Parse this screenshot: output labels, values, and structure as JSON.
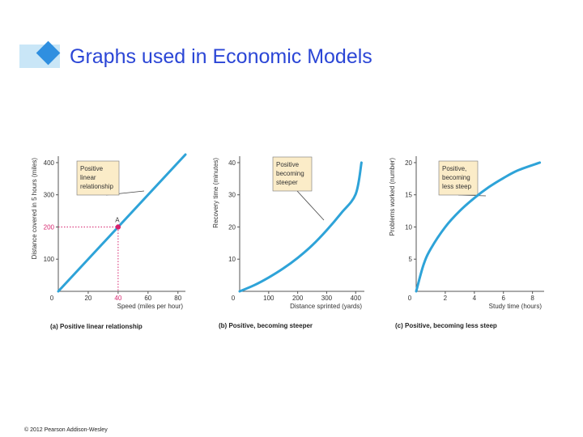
{
  "slide": {
    "title": "Graphs used in Economic Models",
    "copyright": "© 2012 Pearson Addison-Wesley"
  },
  "colors": {
    "curve": "#2ea3d8",
    "callout_bg": "#fbecc8",
    "point": "#d6246e",
    "title": "#2b46d6"
  },
  "chart_data": [
    {
      "type": "line",
      "panel": "a",
      "title": "(a) Positive linear relationship",
      "xlabel": "Speed (miles per hour)",
      "ylabel": "Distance covered in 5 hours (miles)",
      "xlim": [
        0,
        85
      ],
      "ylim": [
        0,
        420
      ],
      "xticks": [
        0,
        20,
        40,
        60,
        80
      ],
      "yticks": [
        100,
        200,
        300,
        400
      ],
      "series": [
        {
          "x": [
            0,
            85
          ],
          "y": [
            0,
            425
          ]
        }
      ],
      "point": {
        "label": "A",
        "x": 40,
        "y": 200
      },
      "highlight_xtick": 40,
      "highlight_ytick": 200,
      "callout": [
        "Positive",
        "linear",
        "relationship"
      ]
    },
    {
      "type": "line",
      "panel": "b",
      "title": "(b) Positive, becoming steeper",
      "xlabel": "Distance sprinted (yards)",
      "ylabel": "Recovery time (minutes)",
      "xlim": [
        0,
        430
      ],
      "ylim": [
        0,
        42
      ],
      "xticks": [
        0,
        100,
        200,
        300,
        400
      ],
      "yticks": [
        10,
        20,
        30,
        40
      ],
      "series": [
        {
          "x": [
            0,
            50,
            100,
            150,
            200,
            250,
            300,
            350,
            400,
            420
          ],
          "y": [
            0,
            1.9,
            4.3,
            7.1,
            10.4,
            14.3,
            19,
            24.3,
            30.2,
            40
          ]
        }
      ],
      "callout": [
        "Positive",
        "becoming",
        "steeper"
      ]
    },
    {
      "type": "line",
      "panel": "c",
      "title": "(c) Positive, becoming less steep",
      "xlabel": "Study time (hours)",
      "ylabel": "Problems worked (number)",
      "xlim": [
        0,
        8.8
      ],
      "ylim": [
        0,
        21
      ],
      "xticks": [
        0,
        2,
        4,
        6,
        8
      ],
      "yticks": [
        5,
        10,
        15,
        20
      ],
      "series": [
        {
          "x": [
            0,
            0.5,
            1,
            2,
            3,
            4,
            5,
            6,
            7,
            8.5
          ],
          "y": [
            0,
            4.1,
            6.6,
            10,
            12.5,
            14.5,
            16.2,
            17.6,
            18.8,
            20
          ]
        }
      ],
      "callout": [
        "Positive,",
        "becoming",
        "less steep"
      ]
    }
  ]
}
